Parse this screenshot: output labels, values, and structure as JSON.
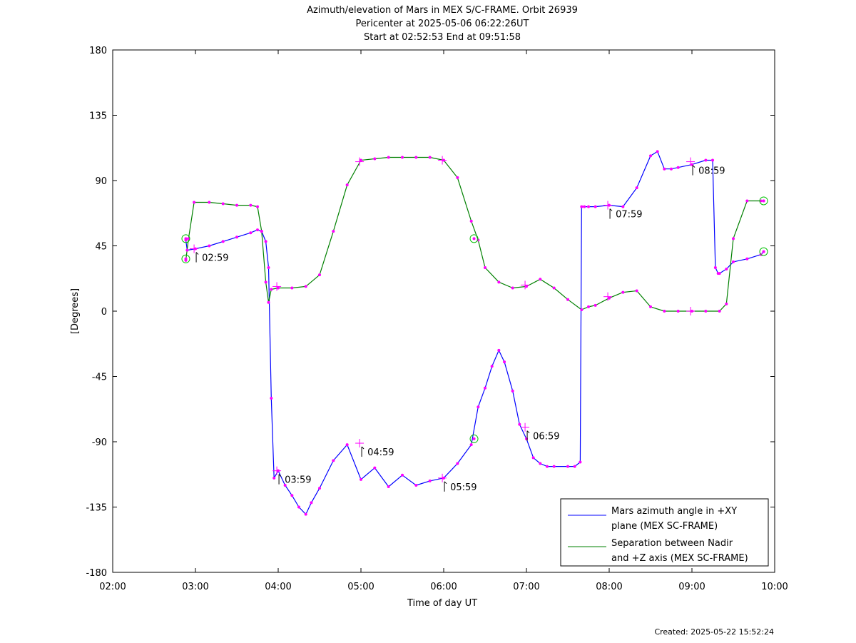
{
  "chart_data": {
    "type": "line",
    "title": "Azimuth/elevation of Mars in MEX S/C-FRAME.  Orbit 26939",
    "subtitle_1": "Pericenter at 2025-05-06 06:22:26UT",
    "subtitle_2": "Start at 02:52:53 End at 09:51:58",
    "xlabel": "Time of day UT",
    "ylabel": "[Degrees]",
    "xlim": [
      "02:00",
      "10:00"
    ],
    "ylim": [
      -180,
      180
    ],
    "x_ticks": [
      "02:00",
      "03:00",
      "04:00",
      "05:00",
      "06:00",
      "07:00",
      "08:00",
      "09:00",
      "10:00"
    ],
    "y_ticks": [
      "180",
      "135",
      "90",
      "45",
      "0",
      "-45",
      "-90",
      "-135",
      "-180"
    ],
    "y_tick_values": [
      180,
      135,
      90,
      45,
      0,
      -45,
      -90,
      -135,
      -180
    ],
    "legend_position": "bottom-right",
    "grid": false,
    "series": [
      {
        "name_line1": "Mars azimuth angle in +XY",
        "name_line2": "plane (MEX SC-FRAME)",
        "color": "#0000ff",
        "x": [
          "02:53",
          "02:54",
          "03:00",
          "03:10",
          "03:20",
          "03:30",
          "03:40",
          "03:45",
          "03:48",
          "03:51",
          "03:53",
          "03:55",
          "03:57",
          "04:00",
          "04:05",
          "04:10",
          "04:15",
          "04:20",
          "04:24",
          "04:30",
          "04:40",
          "04:50",
          "05:00",
          "05:10",
          "05:20",
          "05:30",
          "05:40",
          "05:50",
          "06:00",
          "06:10",
          "06:20",
          "06:25",
          "06:30",
          "06:35",
          "06:40",
          "06:44",
          "06:50",
          "06:55",
          "07:00",
          "07:05",
          "07:10",
          "07:15",
          "07:20",
          "07:30",
          "07:35",
          "07:39",
          "07:40",
          "07:42",
          "07:45",
          "07:50",
          "08:00",
          "08:10",
          "08:20",
          "08:30",
          "08:35",
          "08:40",
          "08:45",
          "08:50",
          "09:00",
          "09:10",
          "09:15",
          "09:17",
          "09:19",
          "09:20",
          "09:25",
          "09:30",
          "09:40",
          "09:50",
          "09:52"
        ],
        "values": [
          49,
          42,
          43,
          45,
          48,
          51,
          54,
          56,
          55,
          48,
          30,
          -60,
          -115,
          -110,
          -120,
          -127,
          -135,
          -140,
          -132,
          -122,
          -103,
          -92,
          -116,
          -108,
          -121,
          -113,
          -120,
          -117,
          -115,
          -105,
          -92,
          -66,
          -53,
          -38,
          -27,
          -35,
          -55,
          -78,
          -88,
          -101,
          -105,
          -107,
          -107,
          -107,
          -107,
          -104,
          72,
          72,
          72,
          72,
          73,
          72,
          85,
          107,
          110,
          98,
          98,
          99,
          101,
          104,
          104,
          30,
          26,
          26,
          29,
          34,
          36,
          39,
          41
        ]
      },
      {
        "name_line1": "Separation between Nadir",
        "name_line2": "and +Z axis (MEX SC-FRAME)",
        "color": "#008000",
        "x": [
          "02:53",
          "02:55",
          "02:59",
          "03:10",
          "03:20",
          "03:30",
          "03:40",
          "03:45",
          "03:48",
          "03:51",
          "03:53",
          "03:55",
          "04:00",
          "04:10",
          "04:20",
          "04:30",
          "04:40",
          "04:50",
          "05:00",
          "05:10",
          "05:20",
          "05:30",
          "05:40",
          "05:50",
          "06:00",
          "06:10",
          "06:20",
          "06:25",
          "06:30",
          "06:40",
          "06:50",
          "07:00",
          "07:10",
          "07:20",
          "07:30",
          "07:40",
          "07:45",
          "07:50",
          "08:00",
          "08:10",
          "08:20",
          "08:30",
          "08:40",
          "08:50",
          "09:00",
          "09:10",
          "09:20",
          "09:25",
          "09:30",
          "09:40",
          "09:50",
          "09:52"
        ],
        "values": [
          35,
          50,
          75,
          75,
          74,
          73,
          73,
          72,
          55,
          20,
          6,
          15,
          16,
          16,
          17,
          25,
          55,
          87,
          104,
          105,
          106,
          106,
          106,
          106,
          104,
          92,
          62,
          49,
          30,
          20,
          16,
          17,
          22,
          16,
          8,
          1,
          3,
          4,
          9,
          13,
          14,
          3,
          0,
          0,
          0,
          0,
          0,
          5,
          50,
          76,
          76,
          76
        ]
      }
    ],
    "hour_labels": [
      {
        "time": "02:59",
        "value": 43
      },
      {
        "time": "03:59",
        "value": -110
      },
      {
        "time": "04:59",
        "value": -91
      },
      {
        "time": "05:59",
        "value": -115
      },
      {
        "time": "06:59",
        "value": -80
      },
      {
        "time": "07:59",
        "value": 73
      },
      {
        "time": "08:59",
        "value": 103
      }
    ],
    "hour_crosses_green": [
      {
        "time": "03:59",
        "value": 17
      },
      {
        "time": "04:59",
        "value": 103
      },
      {
        "time": "05:59",
        "value": 104
      },
      {
        "time": "06:59",
        "value": 18
      },
      {
        "time": "07:59",
        "value": 10
      },
      {
        "time": "08:59",
        "value": 0
      }
    ],
    "circle_markers": [
      {
        "time": "02:53",
        "value": 50
      },
      {
        "time": "02:53",
        "value": 36
      },
      {
        "time": "06:22",
        "value": 50
      },
      {
        "time": "06:22",
        "value": -88
      },
      {
        "time": "09:52",
        "value": 76
      },
      {
        "time": "09:52",
        "value": 41
      }
    ],
    "created": "Created: 2025-05-22 15:52:24"
  }
}
